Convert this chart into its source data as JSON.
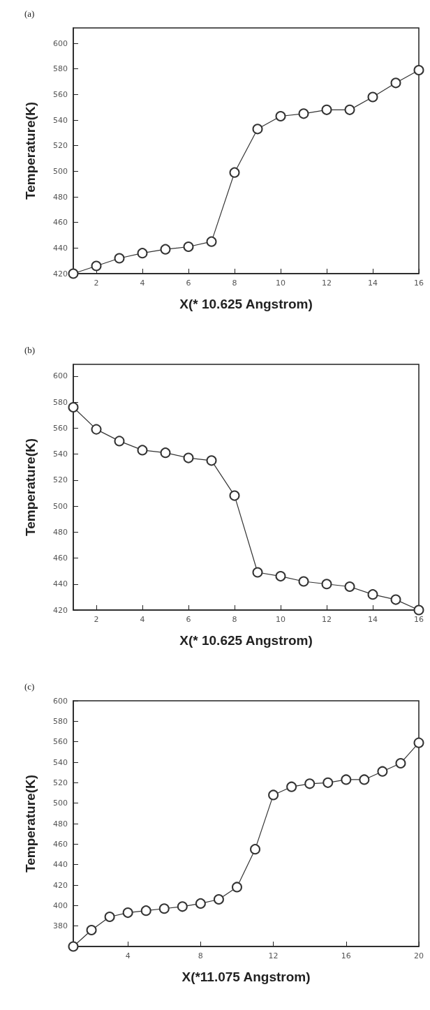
{
  "chart_data": [
    {
      "type": "line",
      "title": "(a)",
      "xlabel": "X(* 10.625 Angstrom)",
      "ylabel": "Temperature(K)",
      "color": "#333333",
      "marker": "circle",
      "x": [
        1,
        2,
        3,
        4,
        5,
        6,
        7,
        8,
        9,
        10,
        11,
        12,
        13,
        14,
        15,
        16
      ],
      "values": [
        420,
        426,
        432,
        436,
        439,
        441,
        445,
        499,
        533,
        543,
        545,
        548,
        548,
        558,
        569,
        579
      ],
      "xlim": [
        1,
        16
      ],
      "ylim": [
        420,
        612
      ],
      "xticks": [
        2,
        4,
        6,
        8,
        10,
        12,
        14,
        16
      ],
      "yticks": [
        420,
        440,
        460,
        480,
        500,
        520,
        540,
        560,
        580,
        600
      ]
    },
    {
      "type": "line",
      "title": "(b)",
      "xlabel": "X(* 10.625 Angstrom)",
      "ylabel": "Temperature(K)",
      "color": "#333333",
      "marker": "circle",
      "x": [
        1,
        2,
        3,
        4,
        5,
        6,
        7,
        8,
        9,
        10,
        11,
        12,
        13,
        14,
        15,
        16
      ],
      "values": [
        576,
        559,
        550,
        543,
        541,
        537,
        535,
        508,
        449,
        446,
        442,
        440,
        438,
        432,
        428,
        420
      ],
      "xlim": [
        1,
        16
      ],
      "ylim": [
        420,
        609
      ],
      "xticks": [
        2,
        4,
        6,
        8,
        10,
        12,
        14,
        16
      ],
      "yticks": [
        420,
        440,
        460,
        480,
        500,
        520,
        540,
        560,
        580,
        600
      ]
    },
    {
      "type": "line",
      "title": "(c)",
      "xlabel": "X(*11.075 Angstrom)",
      "ylabel": "Temperature(K)",
      "color": "#333333",
      "marker": "circle",
      "x": [
        1,
        2,
        3,
        4,
        5,
        6,
        7,
        8,
        9,
        10,
        11,
        12,
        13,
        14,
        15,
        16,
        17,
        18,
        19,
        20
      ],
      "values": [
        360,
        376,
        389,
        393,
        395,
        397,
        399,
        402,
        406,
        418,
        455,
        508,
        516,
        519,
        520,
        523,
        523,
        531,
        539,
        559
      ],
      "xlim": [
        1,
        20
      ],
      "ylim": [
        360,
        600
      ],
      "xticks": [
        4,
        8,
        12,
        16,
        20
      ],
      "yticks": [
        380,
        400,
        420,
        440,
        460,
        480,
        500,
        520,
        540,
        560,
        580,
        600
      ]
    }
  ]
}
